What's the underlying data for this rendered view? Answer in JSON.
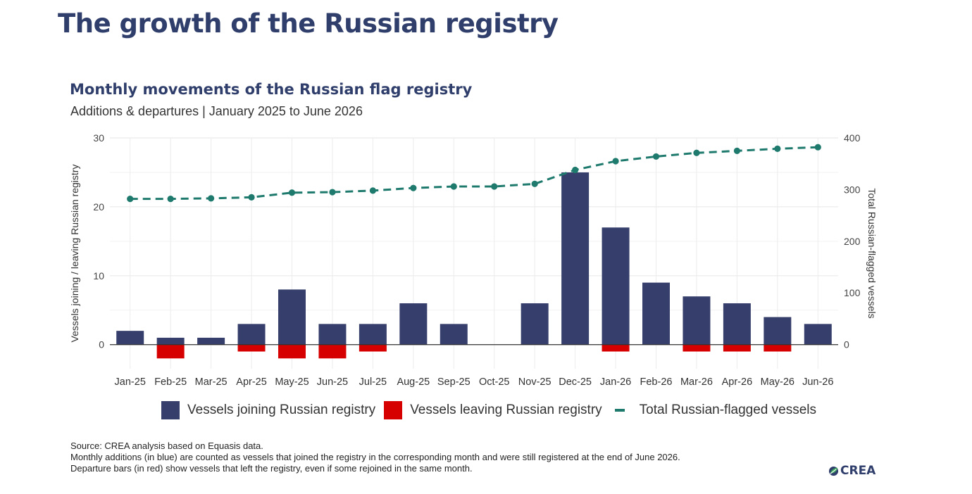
{
  "page": {
    "title": "The growth of the Russian registry"
  },
  "footnote": {
    "source": "Source: CREA analysis based on Equasis data.",
    "note1": "Monthly additions (in blue) are counted as vessels that joined the registry in the corresponding month and were still registered at the end of June 2026.",
    "note2": "Departure bars (in red) show vessels that left the registry, even if some rejoined in the same month."
  },
  "logo": {
    "text": "CREA",
    "icon": "crea-leaf-icon"
  },
  "colors": {
    "joining": "#363f6b",
    "leaving": "#d60000",
    "total": "#1f7a6e",
    "title": "#2f3e6b"
  },
  "chart_data": {
    "type": "bar",
    "title": "Monthly movements of the Russian flag registry",
    "subtitle": "Additions & departures | January 2025 to June 2026",
    "ylabel": "Vessels joining / leaving Russian registry",
    "y2label": "Total Russian-flagged vessels",
    "ylim": [
      -3.5,
      30
    ],
    "y2lim": [
      -47,
      400
    ],
    "yticks": [
      0,
      10,
      20,
      30
    ],
    "y2ticks": [
      0,
      100,
      200,
      300,
      400
    ],
    "grid": true,
    "legend_position": "bottom",
    "categories": [
      "Jan-25",
      "Feb-25",
      "Mar-25",
      "Apr-25",
      "May-25",
      "Jun-25",
      "Jul-25",
      "Aug-25",
      "Sep-25",
      "Oct-25",
      "Nov-25",
      "Dec-25",
      "Jan-26",
      "Feb-26",
      "Mar-26",
      "Apr-26",
      "May-26",
      "Jun-26"
    ],
    "series": [
      {
        "name": "Vessels joining Russian registry",
        "type": "bar",
        "axis": "left",
        "values": [
          2,
          1,
          1,
          3,
          8,
          3,
          3,
          6,
          3,
          0,
          6,
          25,
          17,
          9,
          7,
          6,
          4,
          3
        ]
      },
      {
        "name": "Vessels leaving Russian registry",
        "type": "bar",
        "axis": "left",
        "values": [
          0,
          -2,
          0,
          -1,
          -2,
          -2,
          -1,
          0,
          0,
          0,
          0,
          0,
          -1,
          0,
          -1,
          -1,
          -1,
          0
        ]
      },
      {
        "name": "Total Russian-flagged vessels",
        "type": "line",
        "axis": "right",
        "style": "dashed",
        "values": [
          282,
          282,
          283,
          285,
          294,
          295,
          298,
          303,
          306,
          306,
          311,
          338,
          355,
          364,
          371,
          375,
          379,
          382
        ]
      }
    ]
  }
}
